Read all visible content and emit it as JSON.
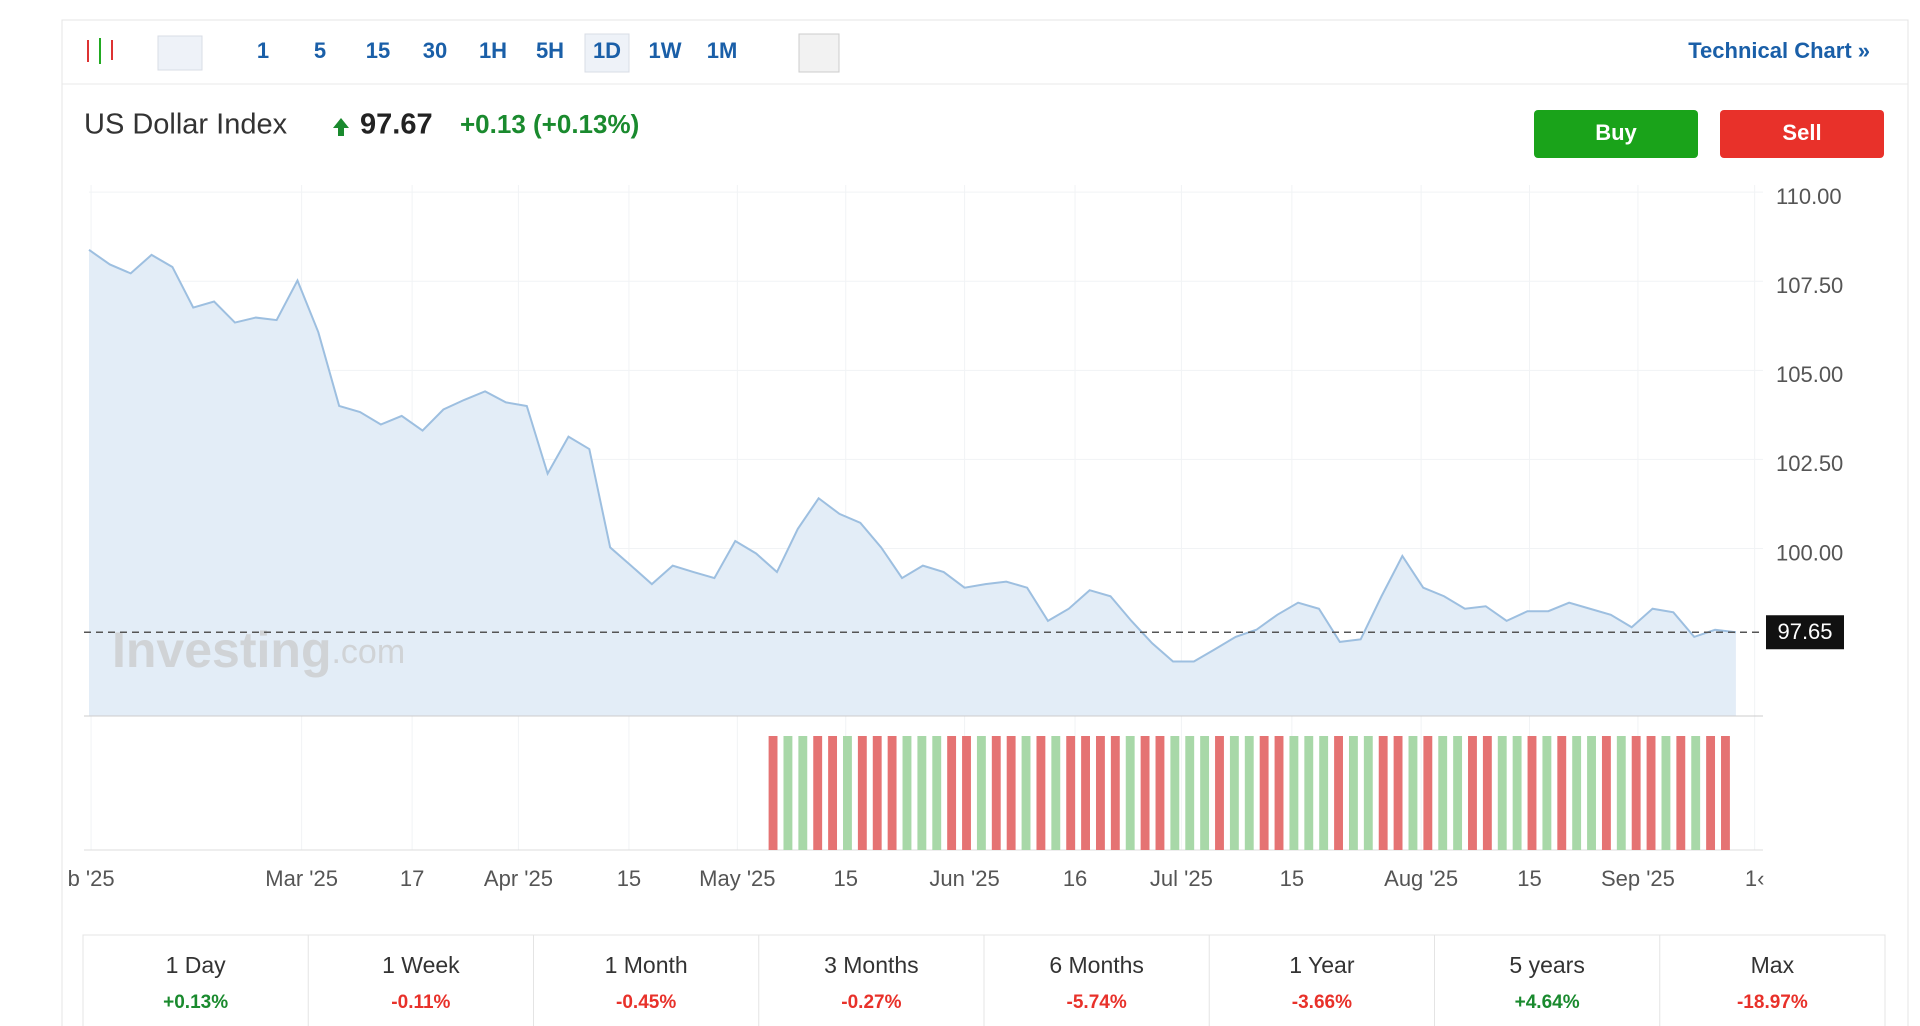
{
  "toolbar": {
    "intervals": [
      "1",
      "5",
      "15",
      "30",
      "1H",
      "5H",
      "1D",
      "1W",
      "1M"
    ],
    "active": "1D",
    "link": "Technical Chart »"
  },
  "header": {
    "name": "US Dollar Index",
    "price": "97.67",
    "change": "+0.13 (+0.13%)",
    "buy": "Buy",
    "sell": "Sell"
  },
  "chart_data": {
    "type": "area",
    "color": "#9dbfe0",
    "fill": "#e3edf7",
    "x": [
      0,
      1,
      2,
      3,
      4,
      5,
      6,
      7,
      8,
      9,
      10,
      11,
      12,
      13,
      14,
      15,
      16,
      17,
      18,
      19,
      20,
      21,
      22,
      23,
      24,
      25,
      26,
      27,
      28,
      29,
      30,
      31,
      32,
      33,
      34,
      35,
      36,
      37,
      38,
      39,
      40,
      41,
      42,
      43,
      44,
      45,
      46,
      47,
      48,
      49,
      50,
      51,
      52,
      53,
      54,
      55,
      56,
      57,
      58,
      59,
      60,
      61,
      62,
      63,
      64,
      65,
      66,
      67,
      68,
      69,
      70,
      71,
      72,
      73,
      74,
      75,
      76,
      77,
      78,
      79
    ],
    "values": [
      108.38,
      107.97,
      107.72,
      108.24,
      107.9,
      106.76,
      106.93,
      106.34,
      106.48,
      106.41,
      107.52,
      106.07,
      104.0,
      103.83,
      103.48,
      103.72,
      103.31,
      103.9,
      104.17,
      104.41,
      104.1,
      104.0,
      102.1,
      103.14,
      102.79,
      100.03,
      99.52,
      99.0,
      99.52,
      99.34,
      99.17,
      100.21,
      99.86,
      99.34,
      100.55,
      101.41,
      100.97,
      100.72,
      100.03,
      99.17,
      99.52,
      99.34,
      98.9,
      99.0,
      99.07,
      98.9,
      97.97,
      98.31,
      98.83,
      98.66,
      97.97,
      97.34,
      96.83,
      96.83,
      97.17,
      97.52,
      97.72,
      98.14,
      98.48,
      98.31,
      97.38,
      97.45,
      98.66,
      99.79,
      98.9,
      98.66,
      98.31,
      98.38,
      97.97,
      98.24,
      98.24,
      98.48,
      98.31,
      98.14,
      97.79,
      98.31,
      98.21,
      97.52,
      97.72,
      97.65
    ],
    "xlim": [
      0,
      80.3
    ],
    "ylim": [
      95.3,
      110.2
    ],
    "yticks": [
      {
        "value": 110,
        "label": "110.00"
      },
      {
        "value": 107.5,
        "label": "107.50"
      },
      {
        "value": 105,
        "label": "105.00"
      },
      {
        "value": 102.5,
        "label": "102.50"
      },
      {
        "value": 100,
        "label": "100.00"
      }
    ],
    "xticks": [
      {
        "value": 0.1,
        "label": "b '25"
      },
      {
        "value": 10.2,
        "label": "Mar '25"
      },
      {
        "value": 15.5,
        "label": "17"
      },
      {
        "value": 20.6,
        "label": "Apr '25"
      },
      {
        "value": 25.9,
        "label": "15"
      },
      {
        "value": 31.1,
        "label": "May '25"
      },
      {
        "value": 36.3,
        "label": "15"
      },
      {
        "value": 42.0,
        "label": "Jun '25"
      },
      {
        "value": 47.3,
        "label": "16"
      },
      {
        "value": 52.4,
        "label": "Jul '25"
      },
      {
        "value": 57.7,
        "label": "15"
      },
      {
        "value": 63.9,
        "label": "Aug '25"
      },
      {
        "value": 69.1,
        "label": "15"
      },
      {
        "value": 74.3,
        "label": "Sep '25"
      },
      {
        "value": 79.9,
        "label": "1‹"
      }
    ],
    "last_price": 97.65,
    "watermark": "Investing",
    "watermark_suffix": ".com",
    "volume_start": 32.6,
    "volume_colors": [
      "#e57373",
      "#a8d8a8",
      "#a8d8a8",
      "#e57373",
      "#e57373",
      "#a8d8a8",
      "#e57373",
      "#e57373",
      "#e57373",
      "#a8d8a8",
      "#a8d8a8",
      "#a8d8a8",
      "#e57373",
      "#e57373",
      "#a8d8a8",
      "#e57373",
      "#e57373",
      "#a8d8a8",
      "#e57373",
      "#a8d8a8",
      "#e57373",
      "#e57373",
      "#e57373",
      "#e57373",
      "#a8d8a8",
      "#e57373",
      "#e57373",
      "#a8d8a8",
      "#a8d8a8",
      "#a8d8a8",
      "#e57373",
      "#a8d8a8",
      "#a8d8a8",
      "#e57373",
      "#e57373",
      "#a8d8a8",
      "#a8d8a8",
      "#a8d8a8",
      "#e57373",
      "#a8d8a8",
      "#a8d8a8",
      "#e57373",
      "#e57373",
      "#a8d8a8",
      "#e57373",
      "#a8d8a8",
      "#a8d8a8",
      "#e57373",
      "#e57373",
      "#a8d8a8",
      "#a8d8a8",
      "#e57373",
      "#a8d8a8",
      "#e57373",
      "#a8d8a8",
      "#a8d8a8",
      "#e57373",
      "#a8d8a8",
      "#e57373",
      "#e57373",
      "#a8d8a8",
      "#e57373",
      "#a8d8a8",
      "#e57373",
      "#e57373"
    ]
  },
  "performance": [
    {
      "period": "1 Day",
      "change": "+0.13%"
    },
    {
      "period": "1 Week",
      "change": "-0.11%"
    },
    {
      "period": "1 Month",
      "change": "-0.45%"
    },
    {
      "period": "3 Months",
      "change": "-0.27%"
    },
    {
      "period": "6 Months",
      "change": "-5.74%"
    },
    {
      "period": "1 Year",
      "change": "-3.66%"
    },
    {
      "period": "5 years",
      "change": "+4.64%"
    },
    {
      "period": "Max",
      "change": "-18.97%"
    }
  ]
}
